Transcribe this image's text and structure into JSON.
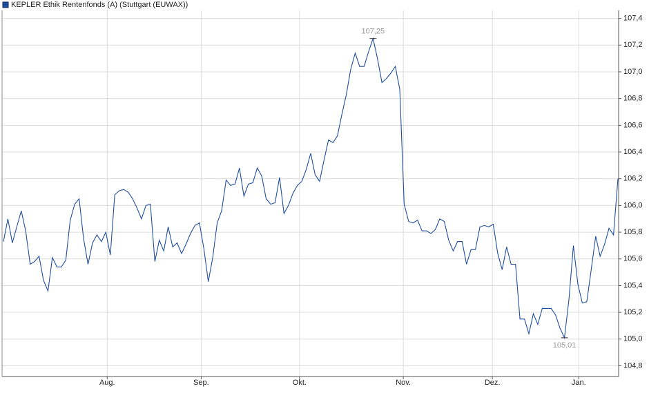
{
  "chart_data": {
    "type": "line",
    "series": [
      {
        "name": "KEPLER Ethik Rentenfonds (A) (Stuttgart (EUWAX))",
        "color": "#1f4e9c",
        "values": [
          105.73,
          105.9,
          105.72,
          105.84,
          105.96,
          105.81,
          105.56,
          105.58,
          105.62,
          105.44,
          105.36,
          105.61,
          105.54,
          105.54,
          105.59,
          105.89,
          106.01,
          106.05,
          105.75,
          105.56,
          105.72,
          105.78,
          105.73,
          105.8,
          105.63,
          106.08,
          106.11,
          106.12,
          106.1,
          106.05,
          105.98,
          105.9,
          106.0,
          106.01,
          105.58,
          105.74,
          105.66,
          105.84,
          105.69,
          105.72,
          105.64,
          105.71,
          105.79,
          105.85,
          105.87,
          105.68,
          105.43,
          105.61,
          105.87,
          105.96,
          106.19,
          106.15,
          106.16,
          106.28,
          106.07,
          106.16,
          106.17,
          106.28,
          106.22,
          106.05,
          106.01,
          106.02,
          106.21,
          105.94,
          106.0,
          106.09,
          106.15,
          106.18,
          106.27,
          106.39,
          106.23,
          106.18,
          106.34,
          106.49,
          106.47,
          106.52,
          106.68,
          106.83,
          107.02,
          107.14,
          107.04,
          107.04,
          107.15,
          107.25,
          107.1,
          106.92,
          106.95,
          106.99,
          107.04,
          106.87,
          106.01,
          105.88,
          105.87,
          105.89,
          105.81,
          105.81,
          105.79,
          105.82,
          105.9,
          105.88,
          105.74,
          105.66,
          105.73,
          105.73,
          105.56,
          105.67,
          105.67,
          105.84,
          105.85,
          105.84,
          105.86,
          105.64,
          105.52,
          105.69,
          105.56,
          105.56,
          105.15,
          105.15,
          105.04,
          105.19,
          105.11,
          105.23,
          105.23,
          105.23,
          105.18,
          105.08,
          105.01,
          105.3,
          105.7,
          105.41,
          105.27,
          105.28,
          105.52,
          105.77,
          105.62,
          105.71,
          105.83,
          105.78,
          106.2
        ]
      }
    ],
    "annotations": [
      {
        "value": 107.25,
        "label": "107,25"
      },
      {
        "value": 105.01,
        "label": "105,01"
      }
    ],
    "xlim": [
      0,
      138
    ],
    "xticks": [
      {
        "value": 23.3,
        "label": "Aug."
      },
      {
        "value": 44.4,
        "label": "Sep."
      },
      {
        "value": 66.5,
        "label": "Okt."
      },
      {
        "value": 89.8,
        "label": "Nov."
      },
      {
        "value": 109.8,
        "label": "Dez."
      },
      {
        "value": 129.2,
        "label": "Jan."
      }
    ],
    "ylim": [
      104.72,
      107.46
    ],
    "yticks": [
      {
        "value": 104.8,
        "label": "104,8"
      },
      {
        "value": 105.0,
        "label": "105,0"
      },
      {
        "value": 105.2,
        "label": "105,2"
      },
      {
        "value": 105.4,
        "label": "105,4"
      },
      {
        "value": 105.6,
        "label": "105,6"
      },
      {
        "value": 105.8,
        "label": "105,8"
      },
      {
        "value": 106.0,
        "label": "106,0"
      },
      {
        "value": 106.2,
        "label": "106,2"
      },
      {
        "value": 106.4,
        "label": "106,4"
      },
      {
        "value": 106.6,
        "label": "106,6"
      },
      {
        "value": 106.8,
        "label": "106,8"
      },
      {
        "value": 107.0,
        "label": "107,0"
      },
      {
        "value": 107.2,
        "label": "107,2"
      },
      {
        "value": 107.4,
        "label": "107,4"
      }
    ],
    "grid": true
  }
}
